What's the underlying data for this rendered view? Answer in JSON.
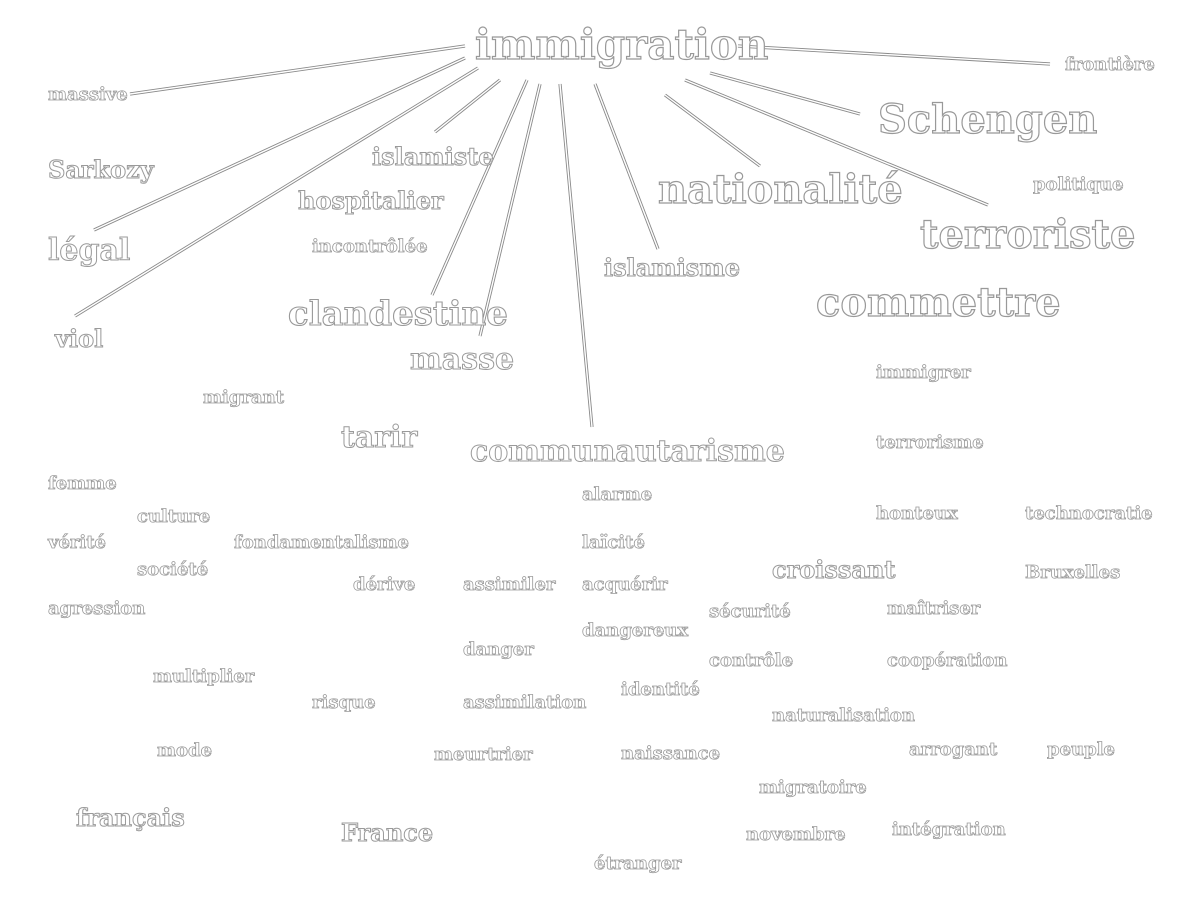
{
  "center": "immigration",
  "linked_terms": [
    "frontière",
    "massive",
    "Schengen",
    "Sarkozy",
    "islamiste",
    "nationalité",
    "terroriste",
    "légal",
    "viol",
    "clandestine",
    "masse",
    "islamisme",
    "communautarisme"
  ],
  "terms": [
    "immigration",
    "frontière",
    "massive",
    "Schengen",
    "Sarkozy",
    "islamiste",
    "politique",
    "hospitalier",
    "nationalité",
    "légal",
    "incontrôlée",
    "terroriste",
    "islamisme",
    "viol",
    "clandestine",
    "commettre",
    "masse",
    "immigrer",
    "migrant",
    "tarir",
    "terrorisme",
    "communautarisme",
    "femme",
    "alarme",
    "culture",
    "honteux",
    "technocratie",
    "vérité",
    "fondamentalisme",
    "laïcité",
    "société",
    "croissant",
    "Bruxelles",
    "dérive",
    "assimiler",
    "acquérir",
    "agression",
    "sécurité",
    "maîtriser",
    "dangereux",
    "danger",
    "contrôle",
    "coopération",
    "multiplier",
    "identité",
    "risque",
    "assimilation",
    "naturalisation",
    "mode",
    "arrogant",
    "peuple",
    "meurtrier",
    "naissance",
    "migratoire",
    "français",
    "France",
    "intégration",
    "novembre",
    "étranger"
  ]
}
